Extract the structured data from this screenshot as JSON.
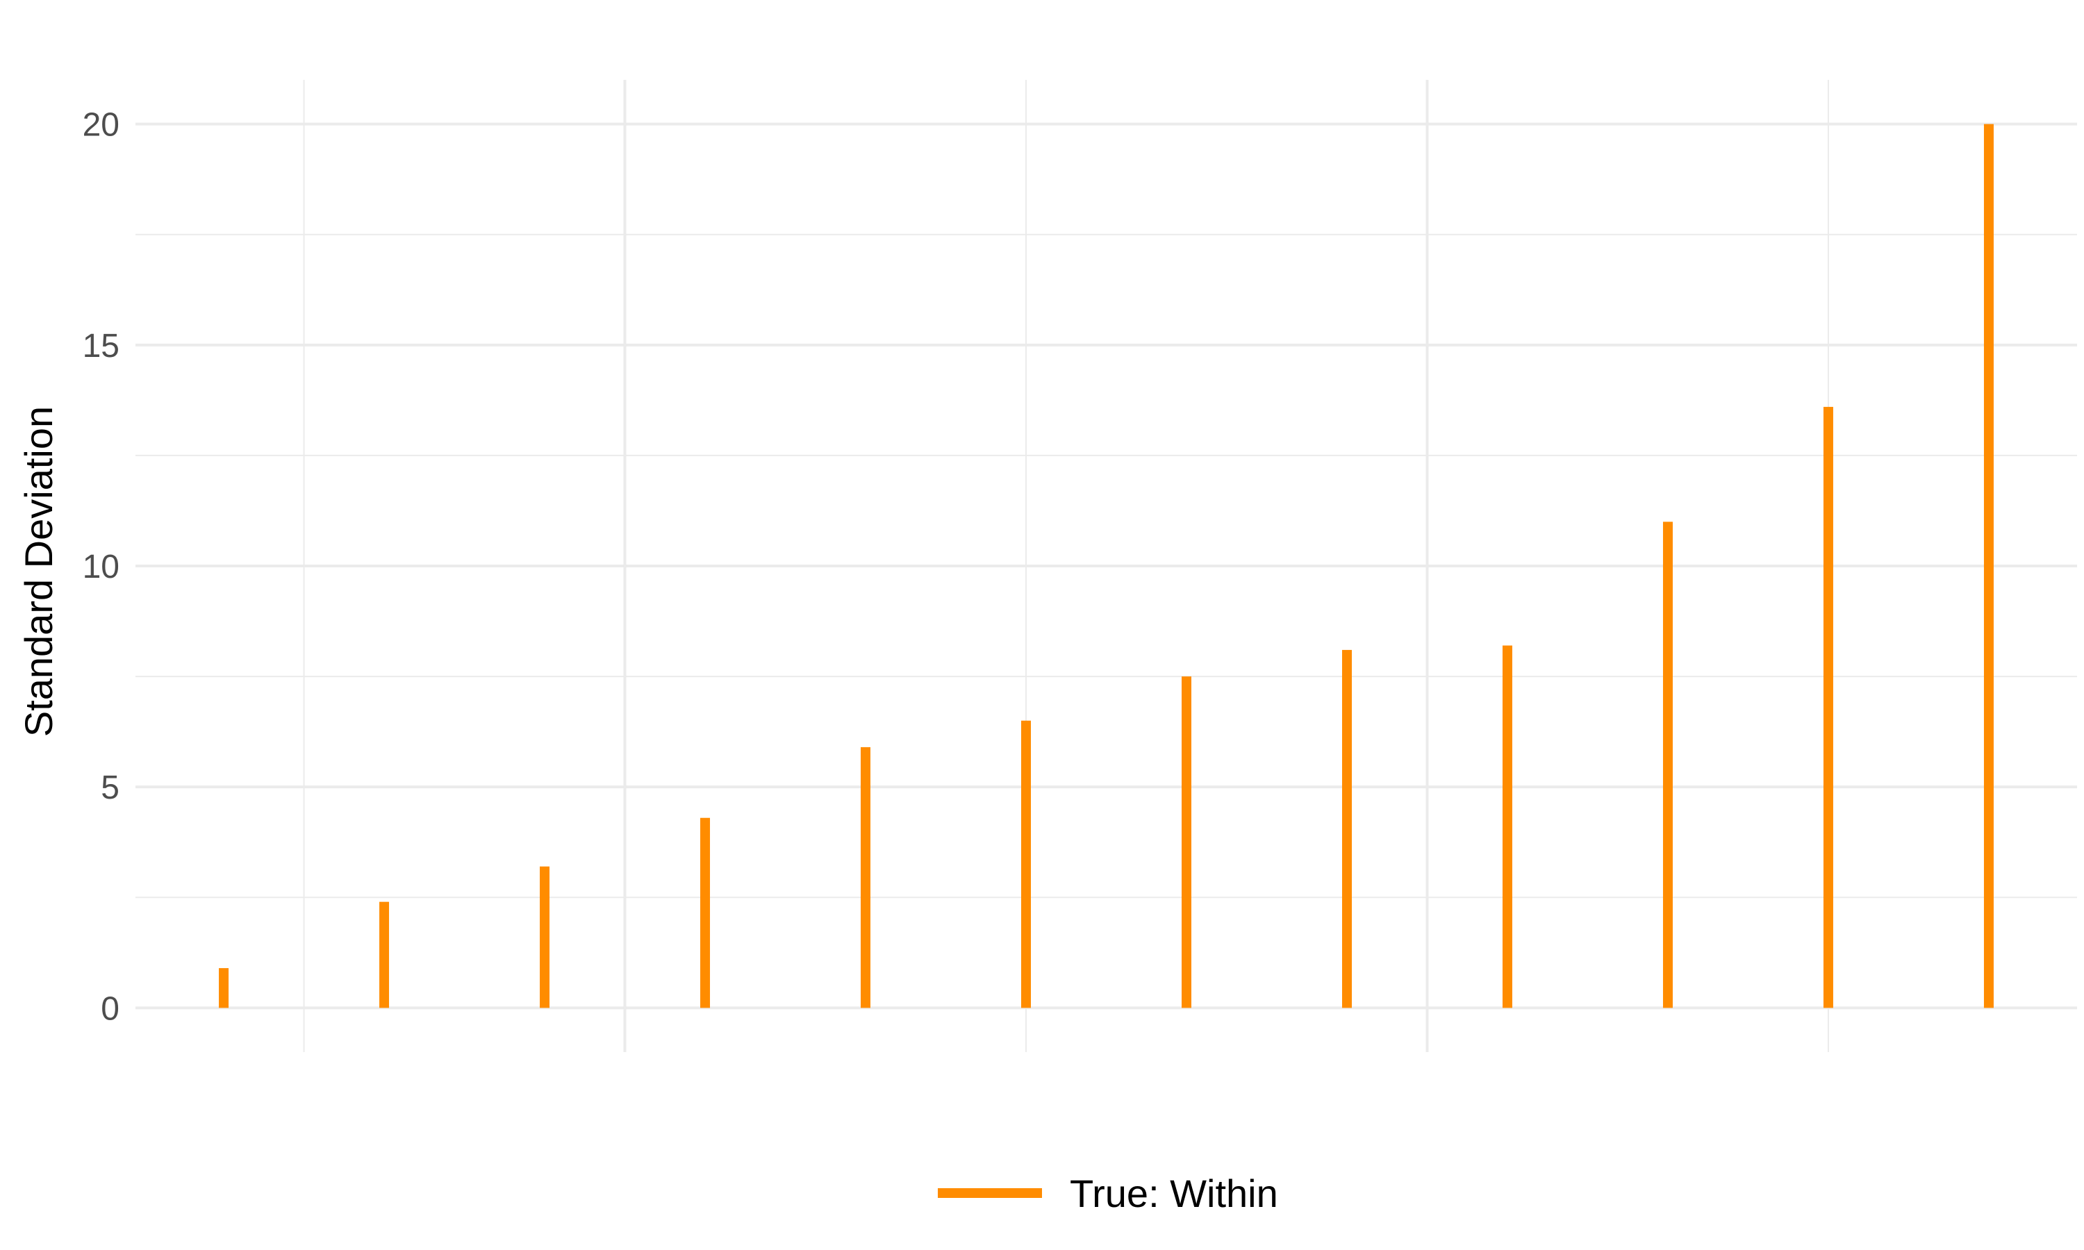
{
  "chart_data": {
    "type": "bar",
    "style": "lollipop-sticks",
    "title": "",
    "xlabel": "",
    "ylabel": "Standard Deviation",
    "ylim": [
      -1,
      21
    ],
    "xlim": [
      0.45,
      12.55
    ],
    "y_ticks": [
      0,
      5,
      10,
      15,
      20
    ],
    "y_tick_labels": [
      "0",
      "5",
      "10",
      "15",
      "20"
    ],
    "y_minor_ticks": [
      2.5,
      7.5,
      12.5,
      17.5
    ],
    "x_grid_major": [
      3.5,
      8.5
    ],
    "x_grid_minor": [
      1.5,
      6,
      11
    ],
    "x_grid_lines": [
      1.5,
      3.5,
      6,
      8.5,
      11
    ],
    "grid": true,
    "legend_position": "bottom",
    "series": [
      {
        "name": "True: Within",
        "color": "#ff8c00",
        "x": [
          1,
          2,
          3,
          4,
          5,
          6,
          7,
          8,
          9,
          10,
          11,
          12
        ],
        "values": [
          0.9,
          2.4,
          3.2,
          4.3,
          5.9,
          6.5,
          7.5,
          8.1,
          8.2,
          11.0,
          13.6,
          20.0
        ]
      }
    ]
  },
  "legend": {
    "items": [
      {
        "label": "True: Within",
        "color": "#ff8c00"
      }
    ]
  }
}
